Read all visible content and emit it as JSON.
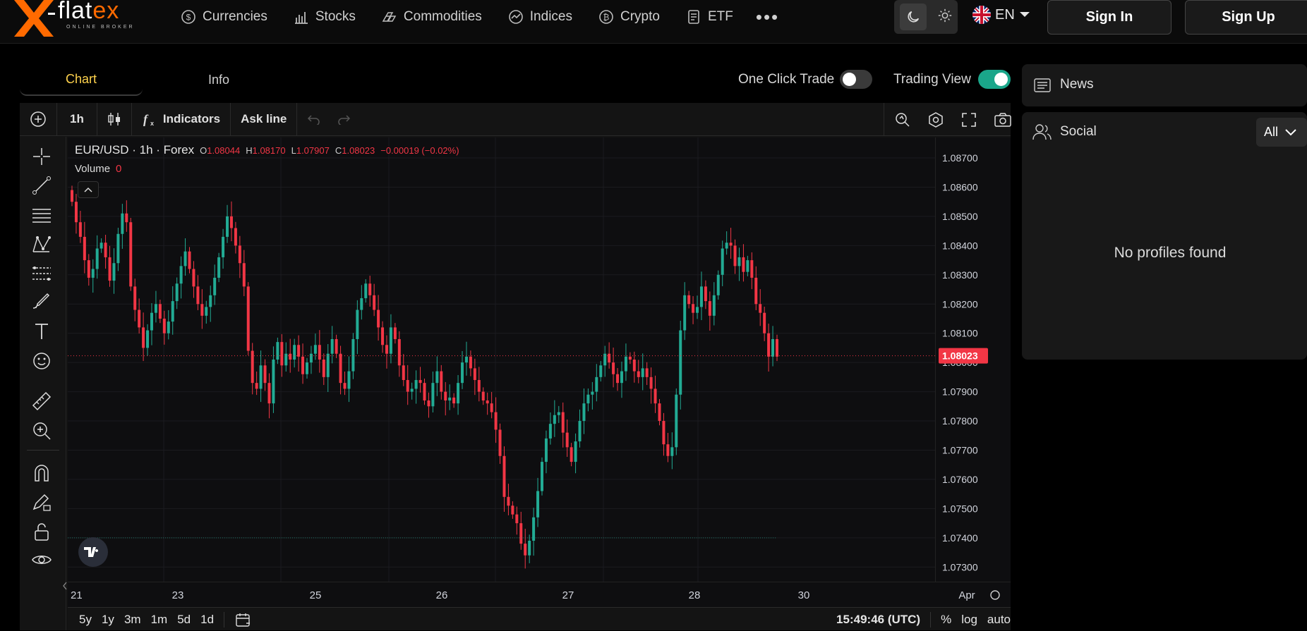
{
  "brand": {
    "name_main": "flat",
    "name_accent": "ex",
    "tagline": "ONLINE BROKER"
  },
  "nav": [
    {
      "label": "Currencies",
      "icon": "currency-icon"
    },
    {
      "label": "Stocks",
      "icon": "stocks-icon"
    },
    {
      "label": "Commodities",
      "icon": "commodities-icon"
    },
    {
      "label": "Indices",
      "icon": "indices-icon"
    },
    {
      "label": "Crypto",
      "icon": "crypto-icon"
    },
    {
      "label": "ETF",
      "icon": "etf-icon"
    }
  ],
  "header": {
    "more": "•••",
    "language": "EN",
    "sign_in": "Sign In",
    "sign_up": "Sign Up"
  },
  "tabs": {
    "chart": "Chart",
    "info": "Info"
  },
  "toggles": {
    "one_click": "One Click Trade",
    "one_click_on": false,
    "trading_view": "Trading View",
    "trading_view_on": true
  },
  "toolbar": {
    "interval": "1h",
    "indicators": "Indicators",
    "ask_line": "Ask line"
  },
  "legend": {
    "symbol": "EUR/USD · 1h · Forex",
    "o_label": "O",
    "o": "1.08044",
    "h_label": "H",
    "h": "1.08170",
    "l_label": "L",
    "l": "1.07907",
    "c_label": "C",
    "c": "1.08023",
    "change": "−0.00019 (−0.02%)",
    "volume_label": "Volume",
    "volume": "0"
  },
  "bottom": {
    "ranges": [
      "5y",
      "1y",
      "3m",
      "1m",
      "5d",
      "1d"
    ],
    "time": "15:49:46 (UTC)",
    "pct": "%",
    "log": "log",
    "auto": "auto"
  },
  "colors": {
    "up": "#22ab94",
    "down": "#f23645",
    "accent": "#ffd34d",
    "toggle_on": "#1aa68a"
  },
  "sidebar": {
    "news": "News",
    "social": "Social",
    "filter": "All",
    "empty": "No profiles found"
  },
  "chart_data": {
    "type": "candlestick",
    "symbol": "EUR/USD",
    "interval": "1h",
    "price_labels": [
      "1.08700",
      "1.08600",
      "1.08500",
      "1.08400",
      "1.08300",
      "1.08200",
      "1.08100",
      "1.08000",
      "1.07900",
      "1.07800",
      "1.07700",
      "1.07600",
      "1.07500",
      "1.07400",
      "1.07300"
    ],
    "current_price": "1.08023",
    "time_labels": [
      "21",
      "23",
      "25",
      "26",
      "27",
      "28",
      "30",
      "Apr"
    ],
    "ylim": [
      1.0725,
      1.0877
    ],
    "closes": [
      1.0855,
      1.0848,
      1.0843,
      1.0835,
      1.0829,
      1.0832,
      1.0839,
      1.0841,
      1.0836,
      1.0828,
      1.0834,
      1.0844,
      1.0851,
      1.0848,
      1.0826,
      1.0818,
      1.0812,
      1.0805,
      1.0811,
      1.0817,
      1.082,
      1.0815,
      1.081,
      1.0814,
      1.0821,
      1.0827,
      1.0833,
      1.0838,
      1.0832,
      1.0826,
      1.082,
      1.0816,
      1.0819,
      1.0823,
      1.0829,
      1.0836,
      1.0843,
      1.085,
      1.0846,
      1.084,
      1.0834,
      1.0826,
      1.0804,
      1.0793,
      1.0791,
      1.0799,
      1.0793,
      1.0786,
      1.0801,
      1.0807,
      1.0799,
      1.0803,
      1.0801,
      1.0806,
      1.0802,
      1.0796,
      1.08,
      1.0803,
      1.0806,
      1.0801,
      1.0795,
      1.0803,
      1.0808,
      1.0803,
      1.0793,
      1.0791,
      1.0797,
      1.0808,
      1.0818,
      1.0822,
      1.0827,
      1.0823,
      1.0818,
      1.0812,
      1.0806,
      1.0803,
      1.0812,
      1.0808,
      1.0799,
      1.0794,
      1.079,
      1.0791,
      1.0794,
      1.0793,
      1.0787,
      1.0785,
      1.0793,
      1.0797,
      1.079,
      1.0787,
      1.0788,
      1.0786,
      1.0793,
      1.08,
      1.0802,
      1.0798,
      1.0794,
      1.079,
      1.0787,
      1.0786,
      1.0783,
      1.0777,
      1.0768,
      1.0754,
      1.0751,
      1.0748,
      1.0745,
      1.0738,
      1.0734,
      1.0739,
      1.0747,
      1.0756,
      1.0766,
      1.0774,
      1.0779,
      1.0782,
      1.0783,
      1.0776,
      1.0771,
      1.0766,
      1.0773,
      1.078,
      1.0786,
      1.0789,
      1.079,
      1.0795,
      1.0799,
      1.0803,
      1.08,
      1.0796,
      1.0793,
      1.0797,
      1.0802,
      1.0801,
      1.0797,
      1.0795,
      1.0798,
      1.0795,
      1.0791,
      1.0786,
      1.078,
      1.0772,
      1.0768,
      1.0771,
      1.0789,
      1.0811,
      1.0823,
      1.082,
      1.0817,
      1.0819,
      1.0826,
      1.0821,
      1.0816,
      1.0823,
      1.083,
      1.0839,
      1.0841,
      1.084,
      1.0833,
      1.0836,
      1.0831,
      1.0835,
      1.0829,
      1.082,
      1.0817,
      1.081,
      1.0802,
      1.0808,
      1.0802
    ],
    "opens_offset_note": ""
  }
}
